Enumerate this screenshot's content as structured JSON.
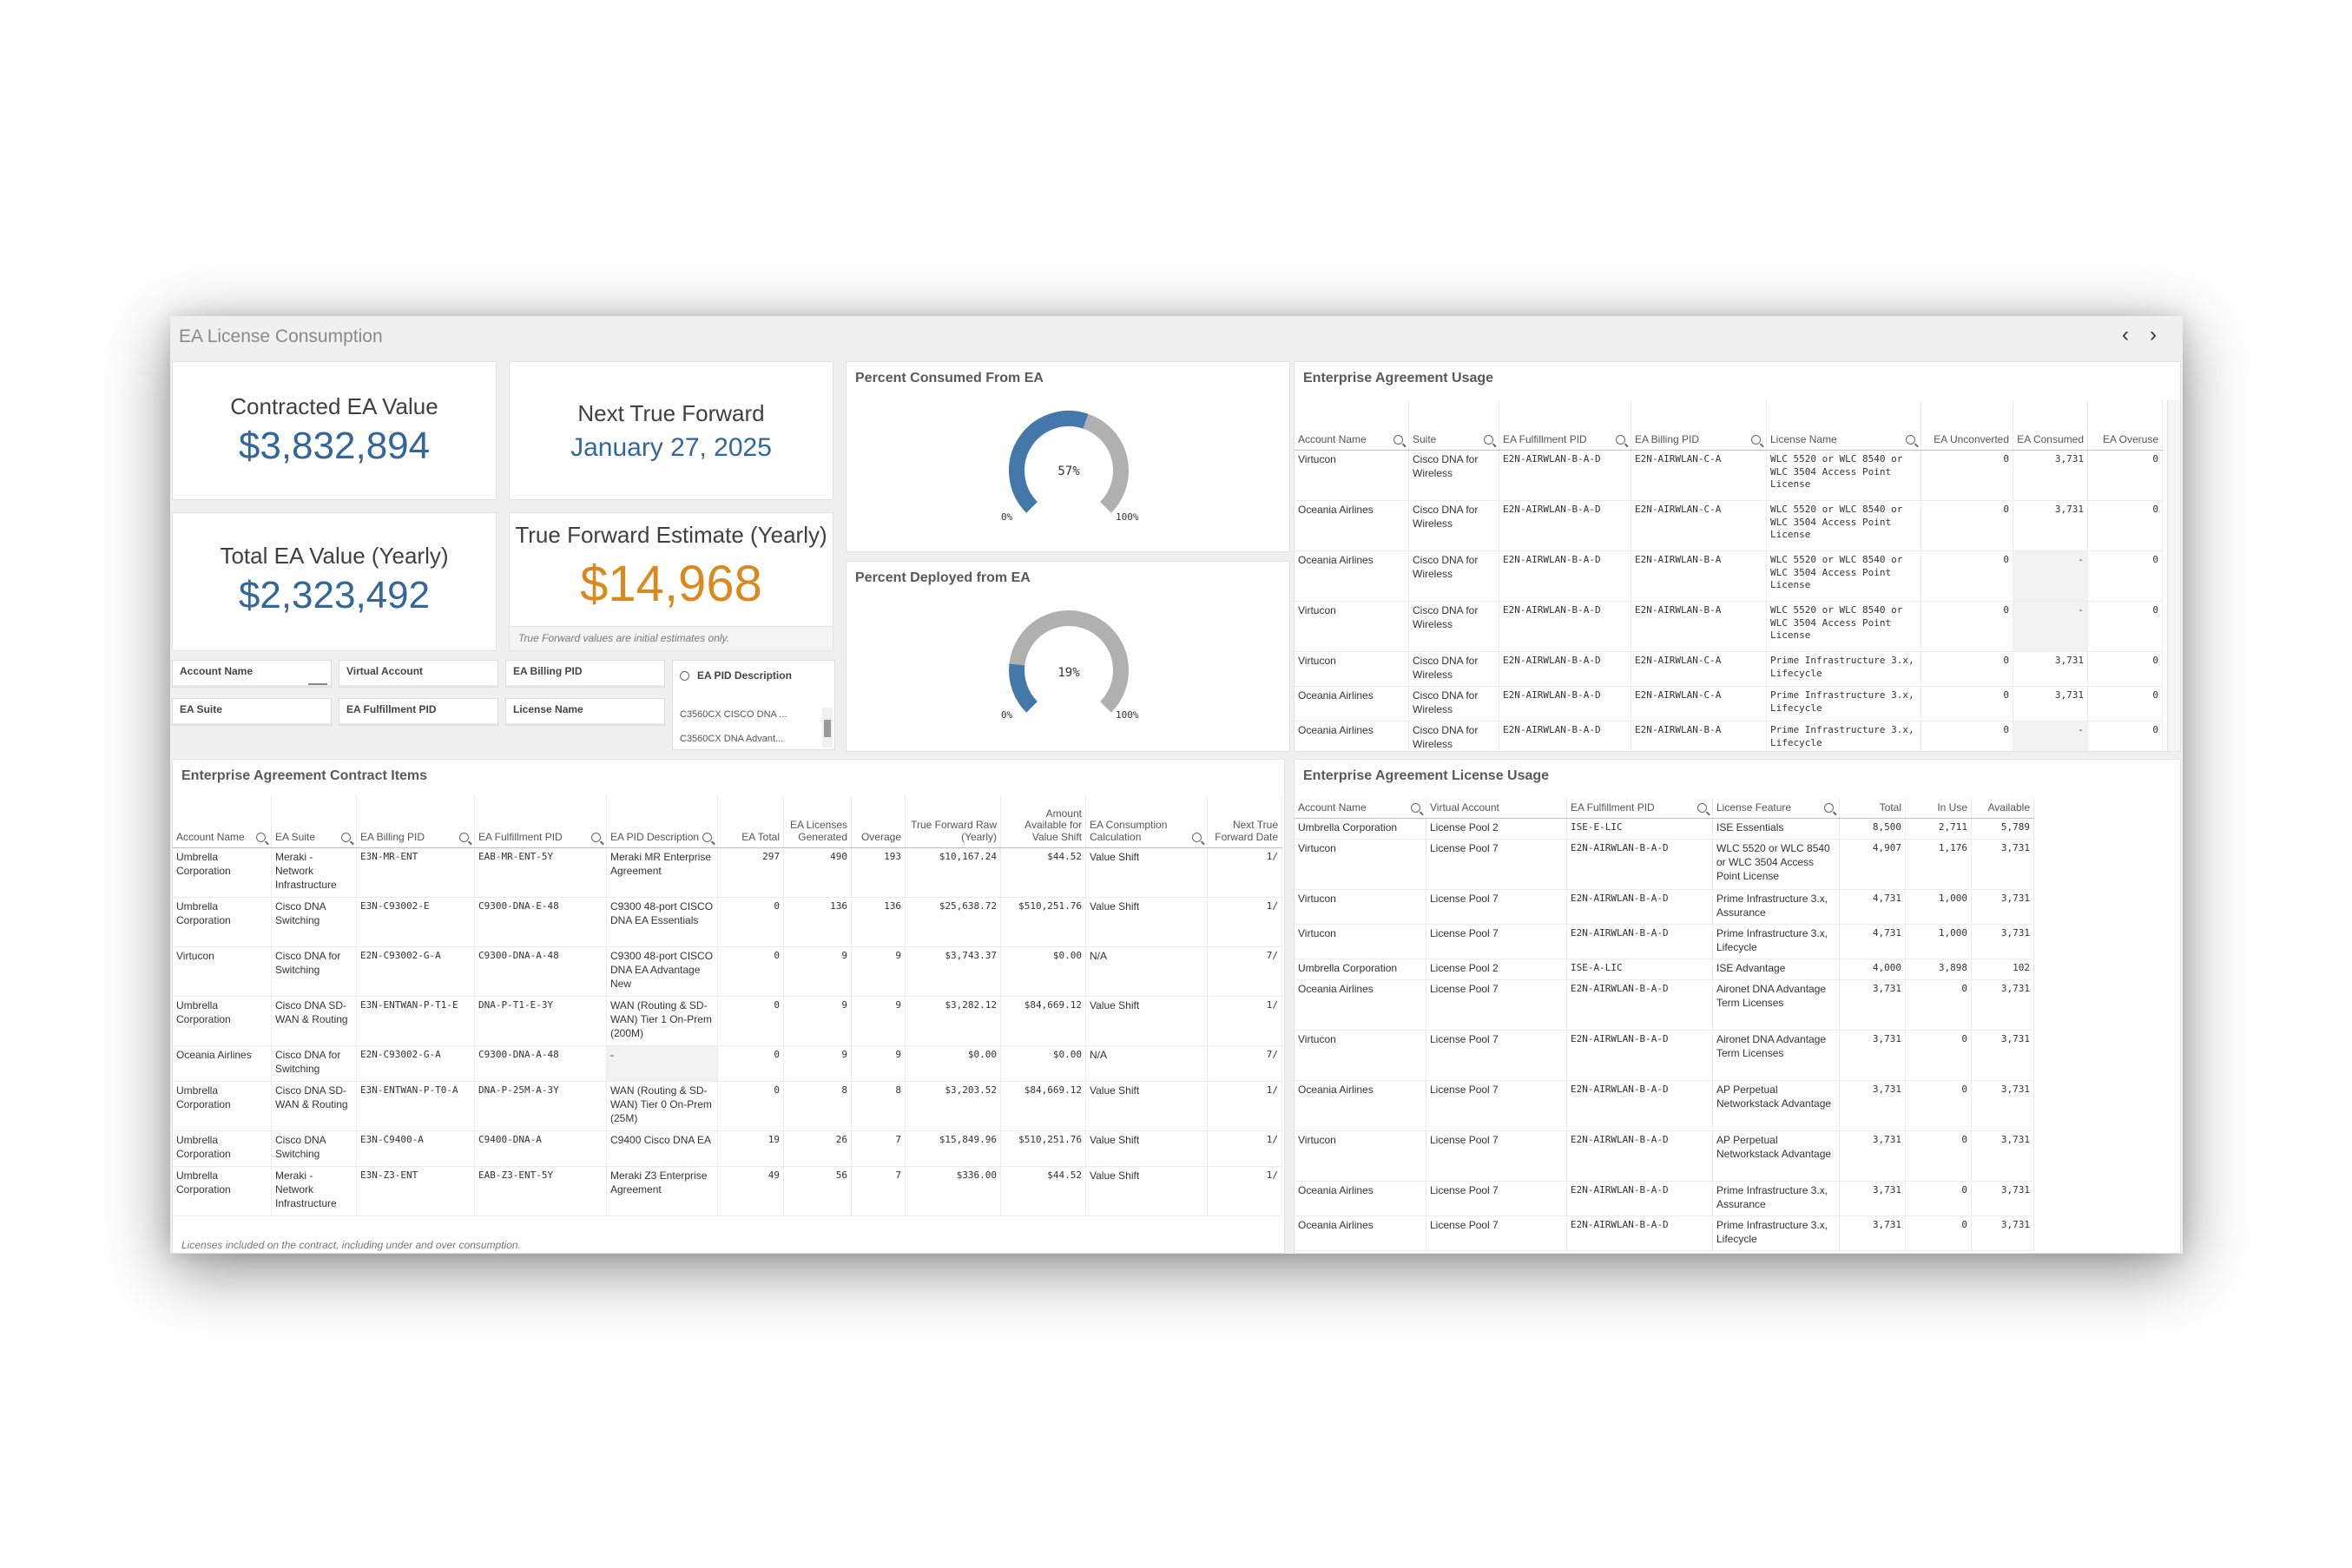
{
  "app_title": "EA License Consumption",
  "nav": {
    "prev": "‹",
    "next": "›"
  },
  "kpis": {
    "contracted": {
      "label": "Contracted EA Value",
      "value": "$3,832,894"
    },
    "next_true_forward": {
      "label": "Next True Forward",
      "value": "January 27, 2025"
    },
    "total_yearly": {
      "label": "Total EA Value (Yearly)",
      "value": "$2,323,492"
    },
    "true_forward_estimate": {
      "label": "True Forward Estimate (Yearly)",
      "value": "$14,968",
      "note": "True Forward values are initial estimates only.",
      "color": "#d98a1f"
    }
  },
  "colors": {
    "accent": "#336699",
    "gauge_fill": "#4477aa",
    "gauge_track": "#b0b0b0",
    "orange": "#d98a1f"
  },
  "gauges": {
    "consumed": {
      "title": "Percent Consumed From EA",
      "percent": 57,
      "label": "57%",
      "min_label": "0%",
      "max_label": "100%"
    },
    "deployed": {
      "title": "Percent Deployed from EA",
      "percent": 19,
      "label": "19%",
      "min_label": "0%",
      "max_label": "100%"
    }
  },
  "filters": {
    "account_name": "Account Name",
    "virtual_account": "Virtual Account",
    "ea_billing_pid": "EA Billing PID",
    "ea_suite": "EA Suite",
    "ea_fulfillment_pid": "EA Fulfillment PID",
    "license_name": "License Name",
    "pid_description": {
      "label": "EA PID Description",
      "items": [
        "C3560CX CISCO DNA ...",
        "C3560CX DNA Advant..."
      ]
    }
  },
  "usage_table": {
    "title": "Enterprise Agreement Usage",
    "headers": [
      "Account Name",
      "Suite",
      "EA Fulfillment PID",
      "EA Billing PID",
      "License Name",
      "EA Unconverted",
      "EA Consumed",
      "EA Overuse"
    ],
    "rows": [
      [
        "Virtucon",
        "Cisco DNA for Wireless",
        "E2N-AIRWLAN-B-A-D",
        "E2N-AIRWLAN-C-A",
        "WLC 5520 or WLC 8540 or WLC 3504 Access Point License",
        "0",
        "3,731",
        "0"
      ],
      [
        "Oceania Airlines",
        "Cisco DNA for Wireless",
        "E2N-AIRWLAN-B-A-D",
        "E2N-AIRWLAN-C-A",
        "WLC 5520 or WLC 8540 or WLC 3504 Access Point License",
        "0",
        "3,731",
        "0"
      ],
      [
        "Oceania Airlines",
        "Cisco DNA for Wireless",
        "E2N-AIRWLAN-B-A-D",
        "E2N-AIRWLAN-B-A",
        "WLC 5520 or WLC 8540 or WLC 3504 Access Point License",
        "0",
        "-",
        "0"
      ],
      [
        "Virtucon",
        "Cisco DNA for Wireless",
        "E2N-AIRWLAN-B-A-D",
        "E2N-AIRWLAN-B-A",
        "WLC 5520 or WLC 8540 or WLC 3504 Access Point License",
        "0",
        "-",
        "0"
      ],
      [
        "Virtucon",
        "Cisco DNA for Wireless",
        "E2N-AIRWLAN-B-A-D",
        "E2N-AIRWLAN-C-A",
        "Prime Infrastructure 3.x, Lifecycle",
        "0",
        "3,731",
        "0"
      ],
      [
        "Oceania Airlines",
        "Cisco DNA for Wireless",
        "E2N-AIRWLAN-B-A-D",
        "E2N-AIRWLAN-C-A",
        "Prime Infrastructure 3.x, Lifecycle",
        "0",
        "3,731",
        "0"
      ],
      [
        "Oceania Airlines",
        "Cisco DNA for Wireless",
        "E2N-AIRWLAN-B-A-D",
        "E2N-AIRWLAN-B-A",
        "Prime Infrastructure 3.x, Lifecycle",
        "0",
        "-",
        "0"
      ]
    ]
  },
  "contract_table": {
    "title": "Enterprise Agreement Contract Items",
    "footnote": "Licenses included on the contract, including under and over consumption.",
    "headers": [
      "Account Name",
      "EA Suite",
      "EA Billing PID",
      "EA Fulfillment PID",
      "EA PID Description",
      "EA Total",
      "EA Licenses Generated",
      "Overage",
      "True Forward Raw (Yearly)",
      "Amount Available for Value Shift",
      "EA Consumption Calculation",
      "Next True Forward Date"
    ],
    "rows": [
      [
        "Umbrella Corporation",
        "Meraki - Network Infrastructure",
        "E3N-MR-ENT",
        "EAB-MR-ENT-5Y",
        "Meraki MR Enterprise Agreement",
        "297",
        "490",
        "193",
        "$10,167.24",
        "$44.52",
        "Value Shift",
        "1/"
      ],
      [
        "Umbrella Corporation",
        "Cisco DNA Switching",
        "E3N-C93002-E",
        "C9300-DNA-E-48",
        "C9300 48-port CISCO DNA EA Essentials",
        "0",
        "136",
        "136",
        "$25,638.72",
        "$510,251.76",
        "Value Shift",
        "1/"
      ],
      [
        "Virtucon",
        "Cisco DNA for Switching",
        "E2N-C93002-G-A",
        "C9300-DNA-A-48",
        "C9300 48-port CISCO DNA EA Advantage New",
        "0",
        "9",
        "9",
        "$3,743.37",
        "$0.00",
        "N/A",
        "7/"
      ],
      [
        "Umbrella Corporation",
        "Cisco DNA SD-WAN & Routing",
        "E3N-ENTWAN-P-T1-E",
        "DNA-P-T1-E-3Y",
        "WAN (Routing & SD-WAN) Tier 1 On-Prem (200M)",
        "0",
        "9",
        "9",
        "$3,282.12",
        "$84,669.12",
        "Value Shift",
        "1/"
      ],
      [
        "Oceania Airlines",
        "Cisco DNA for Switching",
        "E2N-C93002-G-A",
        "C9300-DNA-A-48",
        "-",
        "0",
        "9",
        "9",
        "$0.00",
        "$0.00",
        "N/A",
        "7/"
      ],
      [
        "Umbrella Corporation",
        "Cisco DNA SD-WAN & Routing",
        "E3N-ENTWAN-P-T0-A",
        "DNA-P-25M-A-3Y",
        "WAN (Routing & SD-WAN) Tier 0 On-Prem (25M)",
        "0",
        "8",
        "8",
        "$3,203.52",
        "$84,669.12",
        "Value Shift",
        "1/"
      ],
      [
        "Umbrella Corporation",
        "Cisco DNA Switching",
        "E3N-C9400-A",
        "C9400-DNA-A",
        "C9400 Cisco DNA EA",
        "19",
        "26",
        "7",
        "$15,849.96",
        "$510,251.76",
        "Value Shift",
        "1/"
      ],
      [
        "Umbrella Corporation",
        "Meraki - Network Infrastructure",
        "E3N-Z3-ENT",
        "EAB-Z3-ENT-5Y",
        "Meraki Z3 Enterprise Agreement",
        "49",
        "56",
        "7",
        "$336.00",
        "$44.52",
        "Value Shift",
        "1/"
      ]
    ]
  },
  "license_table": {
    "title": "Enterprise Agreement License Usage",
    "headers": [
      "Account Name",
      "Virtual Account",
      "EA Fulfillment PID",
      "License Feature",
      "Total",
      "In Use",
      "Available"
    ],
    "rows": [
      [
        "Umbrella Corporation",
        "License Pool 2",
        "ISE-E-LIC",
        "ISE Essentials",
        "8,500",
        "2,711",
        "5,789"
      ],
      [
        "Virtucon",
        "License Pool 7",
        "E2N-AIRWLAN-B-A-D",
        "WLC 5520 or WLC 8540 or WLC 3504 Access Point License",
        "4,907",
        "1,176",
        "3,731"
      ],
      [
        "Virtucon",
        "License Pool 7",
        "E2N-AIRWLAN-B-A-D",
        "Prime Infrastructure 3.x, Assurance",
        "4,731",
        "1,000",
        "3,731"
      ],
      [
        "Virtucon",
        "License Pool 7",
        "E2N-AIRWLAN-B-A-D",
        "Prime Infrastructure 3.x, Lifecycle",
        "4,731",
        "1,000",
        "3,731"
      ],
      [
        "Umbrella Corporation",
        "License Pool 2",
        "ISE-A-LIC",
        "ISE Advantage",
        "4,000",
        "3,898",
        "102"
      ],
      [
        "Oceania Airlines",
        "License Pool 7",
        "E2N-AIRWLAN-B-A-D",
        "Aironet DNA Advantage Term Licenses",
        "3,731",
        "0",
        "3,731"
      ],
      [
        "Virtucon",
        "License Pool 7",
        "E2N-AIRWLAN-B-A-D",
        "Aironet DNA Advantage Term Licenses",
        "3,731",
        "0",
        "3,731"
      ],
      [
        "Oceania Airlines",
        "License Pool 7",
        "E2N-AIRWLAN-B-A-D",
        "AP Perpetual Networkstack Advantage",
        "3,731",
        "0",
        "3,731"
      ],
      [
        "Virtucon",
        "License Pool 7",
        "E2N-AIRWLAN-B-A-D",
        "AP Perpetual Networkstack Advantage",
        "3,731",
        "0",
        "3,731"
      ],
      [
        "Oceania Airlines",
        "License Pool 7",
        "E2N-AIRWLAN-B-A-D",
        "Prime Infrastructure 3.x, Assurance",
        "3,731",
        "0",
        "3,731"
      ],
      [
        "Oceania Airlines",
        "License Pool 7",
        "E2N-AIRWLAN-B-A-D",
        "Prime Infrastructure 3.x, Lifecycle",
        "3,731",
        "0",
        "3,731"
      ]
    ]
  }
}
